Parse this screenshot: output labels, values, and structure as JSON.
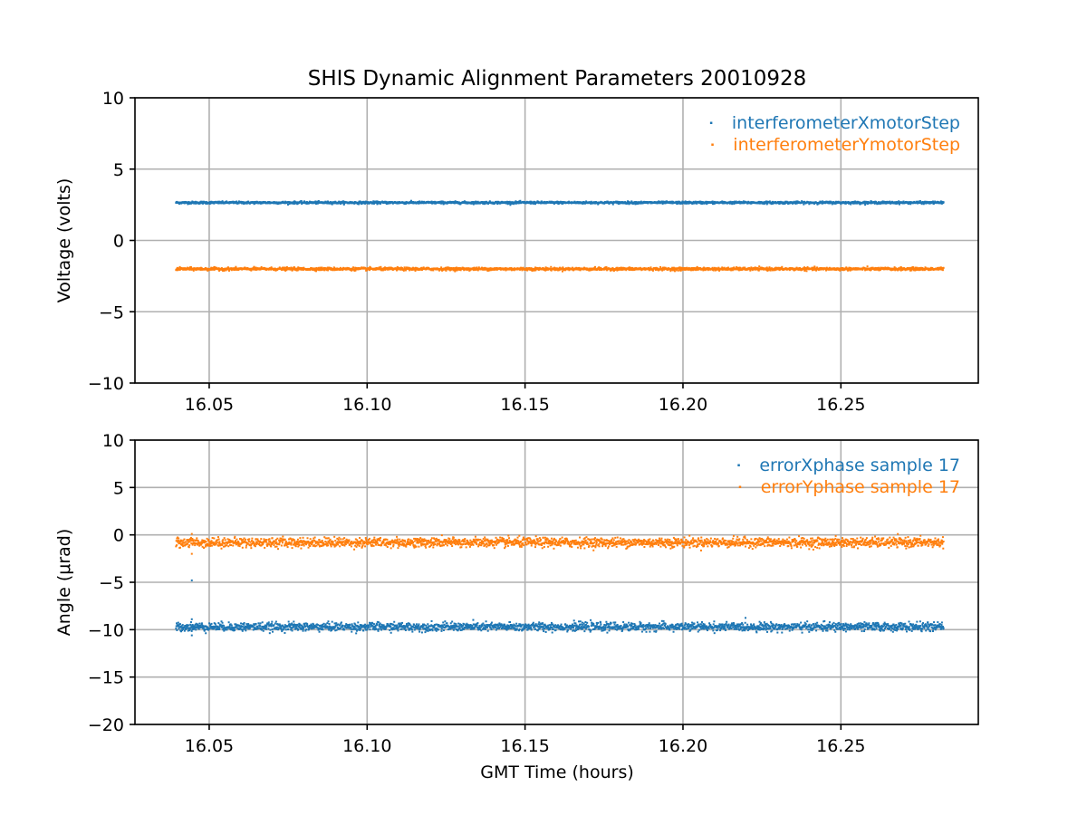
{
  "chart_data": {
    "title": "SHIS Dynamic Alignment Parameters 20010928",
    "type": "scatter",
    "xlabel": "GMT Time (hours)",
    "xlim": [
      16.0265,
      16.2935
    ],
    "xticks": [
      16.05,
      16.1,
      16.15,
      16.2,
      16.25
    ],
    "xtick_labels": [
      "16.05",
      "16.10",
      "16.15",
      "16.20",
      "16.25"
    ],
    "x_range": [
      16.0395,
      16.2825
    ],
    "grid": true,
    "legend_position": "top-right",
    "colors": {
      "blue": "#1f77b4",
      "orange": "#ff7f0e"
    },
    "panels": [
      {
        "ylabel": "Voltage (volts)",
        "ylim": [
          -10,
          10
        ],
        "yticks": [
          10,
          5,
          0,
          -5,
          -10
        ],
        "ytick_labels": [
          "10",
          "5",
          "0",
          "−5",
          "−10"
        ],
        "series": [
          {
            "name": "interferometerXmotorStep",
            "color": "#1f77b4",
            "mean": 2.65,
            "spread": 0.04
          },
          {
            "name": "interferometerYmotorStep",
            "color": "#ff7f0e",
            "mean": -2.0,
            "spread": 0.05
          }
        ]
      },
      {
        "ylabel": "Angle (μrad)",
        "ylim": [
          -20,
          10
        ],
        "yticks": [
          10,
          5,
          0,
          -5,
          -10,
          -15,
          -20
        ],
        "ytick_labels": [
          "10",
          "5",
          "0",
          "−5",
          "−10",
          "−15",
          "−20"
        ],
        "series": [
          {
            "name": "errorXphase sample 17",
            "color": "#1f77b4",
            "mean": -9.7,
            "spread": 0.22,
            "outliers": [
              [
                16.0445,
                -4.8
              ],
              [
                16.0445,
                -8.9
              ],
              [
                16.0445,
                -10.6
              ]
            ]
          },
          {
            "name": "errorYphase sample 17",
            "color": "#ff7f0e",
            "mean": -0.8,
            "spread": 0.25,
            "outliers": [
              [
                16.0445,
                -2.0
              ],
              [
                16.0445,
                0.1
              ]
            ]
          }
        ]
      }
    ]
  }
}
